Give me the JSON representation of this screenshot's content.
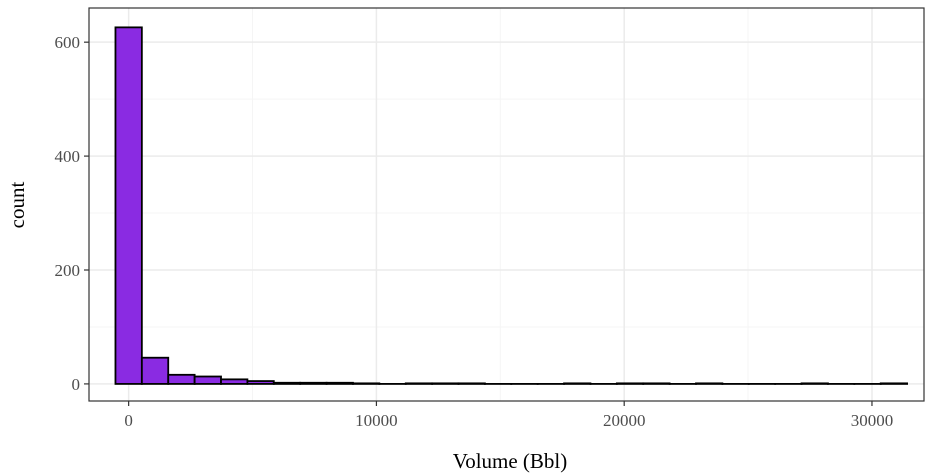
{
  "chart_data": {
    "type": "bar",
    "subtype": "histogram",
    "title": "",
    "xlabel": "Volume (Bbl)",
    "ylabel": "count",
    "xlim": [
      -1600,
      32100
    ],
    "ylim": [
      -30,
      660
    ],
    "x_ticks": [
      0,
      10000,
      20000,
      30000
    ],
    "x_tick_labels": [
      "0",
      "10000",
      "20000",
      "30000"
    ],
    "y_ticks": [
      0,
      200,
      400,
      600
    ],
    "y_tick_labels": [
      "0",
      "200",
      "400",
      "600"
    ],
    "grid": true,
    "legend": "none",
    "bin_width": 1065,
    "bins": [
      {
        "x0": -532,
        "x1": 533,
        "count": 626
      },
      {
        "x0": 533,
        "x1": 1598,
        "count": 46
      },
      {
        "x0": 1598,
        "x1": 2663,
        "count": 16
      },
      {
        "x0": 2663,
        "x1": 3728,
        "count": 13
      },
      {
        "x0": 3728,
        "x1": 4793,
        "count": 8
      },
      {
        "x0": 4793,
        "x1": 5858,
        "count": 5
      },
      {
        "x0": 5858,
        "x1": 6923,
        "count": 2
      },
      {
        "x0": 6923,
        "x1": 7988,
        "count": 2
      },
      {
        "x0": 7988,
        "x1": 9053,
        "count": 2
      },
      {
        "x0": 9053,
        "x1": 10118,
        "count": 1
      },
      {
        "x0": 10118,
        "x1": 11183,
        "count": 0
      },
      {
        "x0": 11183,
        "x1": 12248,
        "count": 1
      },
      {
        "x0": 12248,
        "x1": 13313,
        "count": 1
      },
      {
        "x0": 13313,
        "x1": 14378,
        "count": 1
      },
      {
        "x0": 14378,
        "x1": 15443,
        "count": 0
      },
      {
        "x0": 15443,
        "x1": 16508,
        "count": 0
      },
      {
        "x0": 16508,
        "x1": 17573,
        "count": 0
      },
      {
        "x0": 17573,
        "x1": 18638,
        "count": 1
      },
      {
        "x0": 18638,
        "x1": 19703,
        "count": 0
      },
      {
        "x0": 19703,
        "x1": 20768,
        "count": 1
      },
      {
        "x0": 20768,
        "x1": 21833,
        "count": 1
      },
      {
        "x0": 21833,
        "x1": 22898,
        "count": 0
      },
      {
        "x0": 22898,
        "x1": 23963,
        "count": 1
      },
      {
        "x0": 23963,
        "x1": 25028,
        "count": 0
      },
      {
        "x0": 25028,
        "x1": 26093,
        "count": 0
      },
      {
        "x0": 26093,
        "x1": 27158,
        "count": 0
      },
      {
        "x0": 27158,
        "x1": 28223,
        "count": 1
      },
      {
        "x0": 28223,
        "x1": 29288,
        "count": 0
      },
      {
        "x0": 29288,
        "x1": 30353,
        "count": 0
      },
      {
        "x0": 30353,
        "x1": 31418,
        "count": 1
      }
    ],
    "colors": {
      "bar_fill": "#8a2be2",
      "bar_stroke": "#000000",
      "grid_major": "#ebebeb",
      "grid_minor": "#f5f5f5",
      "panel_border": "#333333",
      "tick_label": "#4d4d4d"
    }
  }
}
